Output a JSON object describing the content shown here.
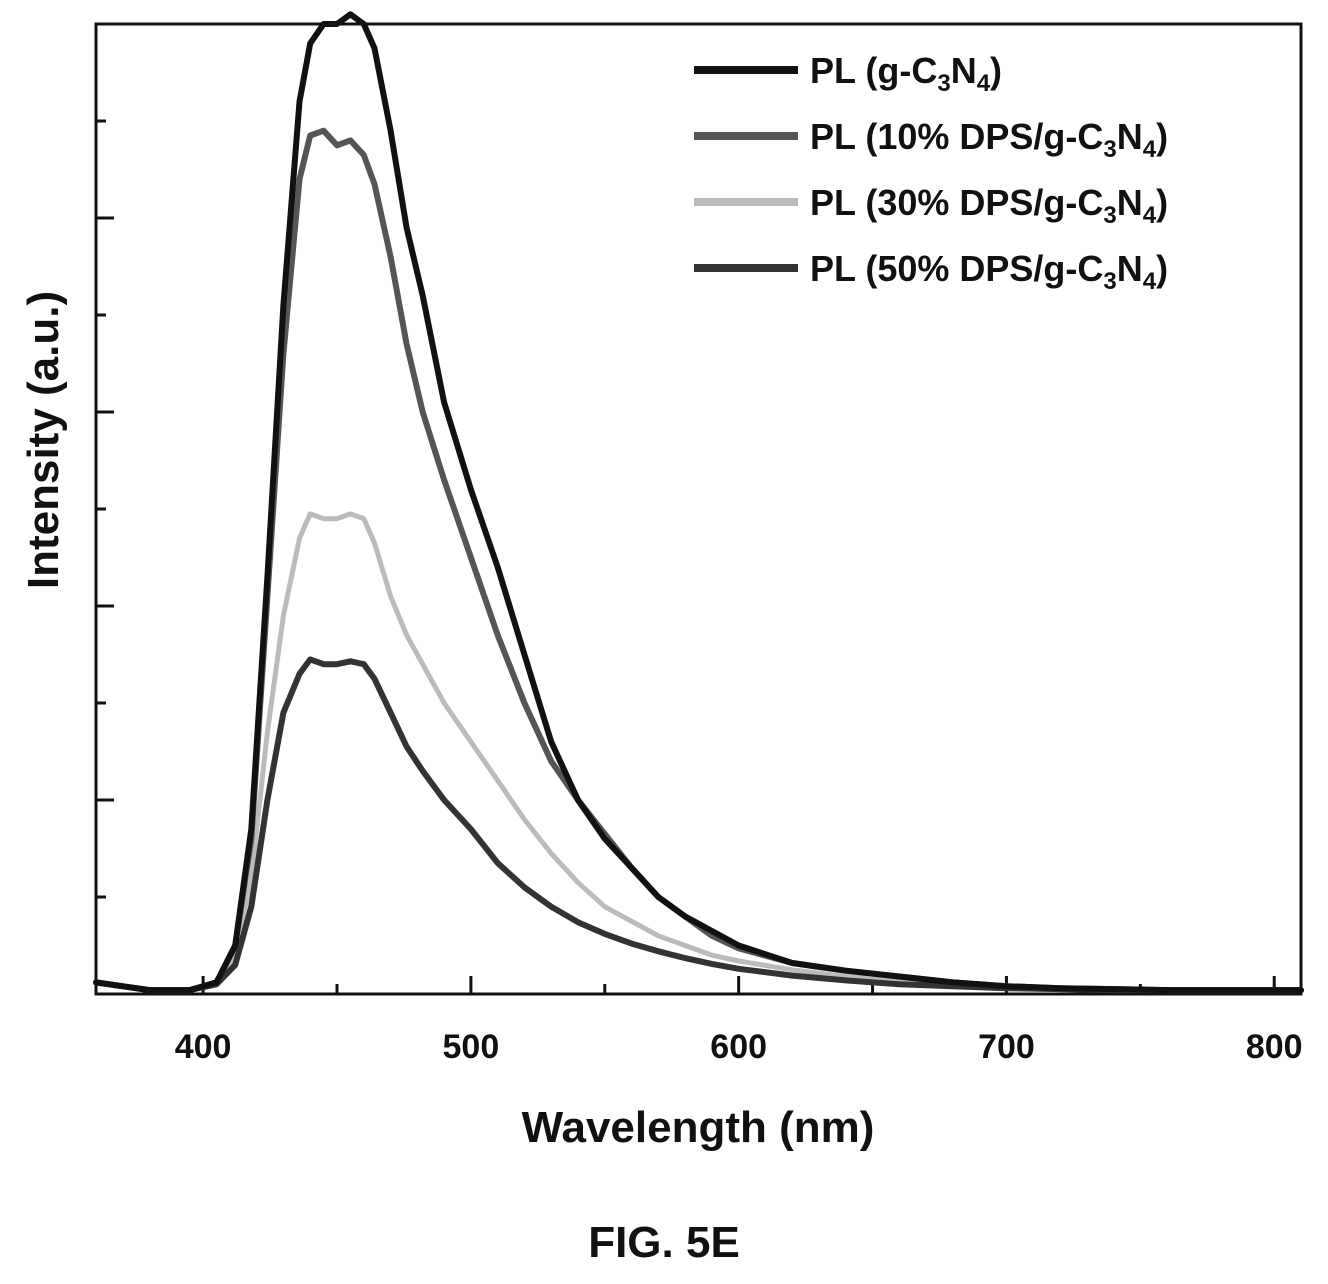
{
  "chart_data": {
    "type": "line",
    "xlabel": "Wavelength (nm)",
    "ylabel": "Intensity (a.u.)",
    "xlim": [
      360,
      810
    ],
    "ylim": [
      0,
      1.0
    ],
    "xticks": [
      400,
      500,
      600,
      700,
      800
    ],
    "grid": false,
    "legend": "top-right",
    "series": [
      {
        "name": "PL (g-C3N4)",
        "label_parts": [
          "PL (g-C",
          "3",
          "N",
          "4",
          ")"
        ],
        "color": "#111111",
        "width": 6,
        "x": [
          360,
          380,
          395,
          405,
          412,
          418,
          424,
          430,
          436,
          440,
          445,
          450,
          455,
          460,
          464,
          470,
          476,
          482,
          490,
          500,
          510,
          520,
          530,
          540,
          550,
          560,
          570,
          580,
          590,
          600,
          620,
          640,
          660,
          680,
          700,
          720,
          740,
          760,
          780,
          800,
          810
        ],
        "y": [
          0.012,
          0.004,
          0.004,
          0.012,
          0.05,
          0.17,
          0.43,
          0.71,
          0.92,
          0.98,
          1.0,
          1.0,
          1.01,
          1.0,
          0.975,
          0.89,
          0.79,
          0.72,
          0.61,
          0.52,
          0.44,
          0.35,
          0.26,
          0.2,
          0.16,
          0.13,
          0.1,
          0.08,
          0.065,
          0.05,
          0.032,
          0.024,
          0.018,
          0.012,
          0.008,
          0.006,
          0.005,
          0.004,
          0.004,
          0.004,
          0.004
        ]
      },
      {
        "name": "PL (10% DPS/g-C3N4)",
        "label_parts": [
          "PL (10% DPS/g-C",
          "3",
          "N",
          "4",
          ")"
        ],
        "color": "#555555",
        "width": 6,
        "x": [
          360,
          380,
          395,
          405,
          412,
          418,
          424,
          430,
          436,
          440,
          445,
          450,
          455,
          460,
          464,
          470,
          476,
          482,
          490,
          500,
          510,
          520,
          530,
          540,
          550,
          560,
          570,
          580,
          590,
          600,
          620,
          640,
          660,
          680,
          700,
          720,
          740,
          760,
          780,
          800,
          810
        ],
        "y": [
          0.012,
          0.004,
          0.004,
          0.012,
          0.05,
          0.16,
          0.41,
          0.66,
          0.84,
          0.885,
          0.89,
          0.875,
          0.88,
          0.865,
          0.835,
          0.76,
          0.67,
          0.6,
          0.53,
          0.45,
          0.37,
          0.3,
          0.24,
          0.2,
          0.165,
          0.13,
          0.1,
          0.08,
          0.06,
          0.047,
          0.032,
          0.024,
          0.018,
          0.012,
          0.008,
          0.006,
          0.005,
          0.004,
          0.004,
          0.004,
          0.004
        ]
      },
      {
        "name": "PL (30% DPS/g-C3N4)",
        "label_parts": [
          "PL (30% DPS/g-C",
          "3",
          "N",
          "4",
          ")"
        ],
        "color": "#bbbbbb",
        "width": 5,
        "x": [
          360,
          380,
          395,
          405,
          412,
          418,
          424,
          430,
          436,
          440,
          445,
          450,
          455,
          460,
          464,
          470,
          476,
          482,
          490,
          500,
          510,
          520,
          530,
          540,
          550,
          560,
          570,
          580,
          590,
          600,
          620,
          640,
          660,
          680,
          700,
          720,
          740,
          760,
          780,
          800,
          810
        ],
        "y": [
          0.012,
          0.004,
          0.004,
          0.012,
          0.04,
          0.12,
          0.27,
          0.39,
          0.47,
          0.495,
          0.49,
          0.49,
          0.495,
          0.49,
          0.465,
          0.41,
          0.37,
          0.34,
          0.3,
          0.26,
          0.22,
          0.18,
          0.145,
          0.115,
          0.09,
          0.075,
          0.06,
          0.05,
          0.04,
          0.034,
          0.025,
          0.018,
          0.014,
          0.01,
          0.007,
          0.005,
          0.004,
          0.004,
          0.004,
          0.004,
          0.004
        ]
      },
      {
        "name": "PL (50% DPS/g-C3N4)",
        "label_parts": [
          "PL (50% DPS/g-C",
          "3",
          "N",
          "4",
          ")"
        ],
        "color": "#333333",
        "width": 6,
        "x": [
          360,
          380,
          395,
          405,
          412,
          418,
          424,
          430,
          436,
          440,
          445,
          450,
          455,
          460,
          464,
          470,
          476,
          482,
          490,
          500,
          510,
          520,
          530,
          540,
          550,
          560,
          570,
          580,
          590,
          600,
          620,
          640,
          660,
          680,
          700,
          720,
          740,
          760,
          780,
          800,
          810
        ],
        "y": [
          0.012,
          0.004,
          0.004,
          0.01,
          0.03,
          0.09,
          0.2,
          0.29,
          0.33,
          0.345,
          0.34,
          0.34,
          0.343,
          0.34,
          0.325,
          0.29,
          0.255,
          0.23,
          0.2,
          0.17,
          0.135,
          0.11,
          0.09,
          0.074,
          0.062,
          0.052,
          0.044,
          0.037,
          0.031,
          0.026,
          0.019,
          0.014,
          0.01,
          0.008,
          0.006,
          0.005,
          0.004,
          0.004,
          0.004,
          0.004,
          0.004
        ]
      }
    ]
  },
  "caption": "FIG. 5E"
}
